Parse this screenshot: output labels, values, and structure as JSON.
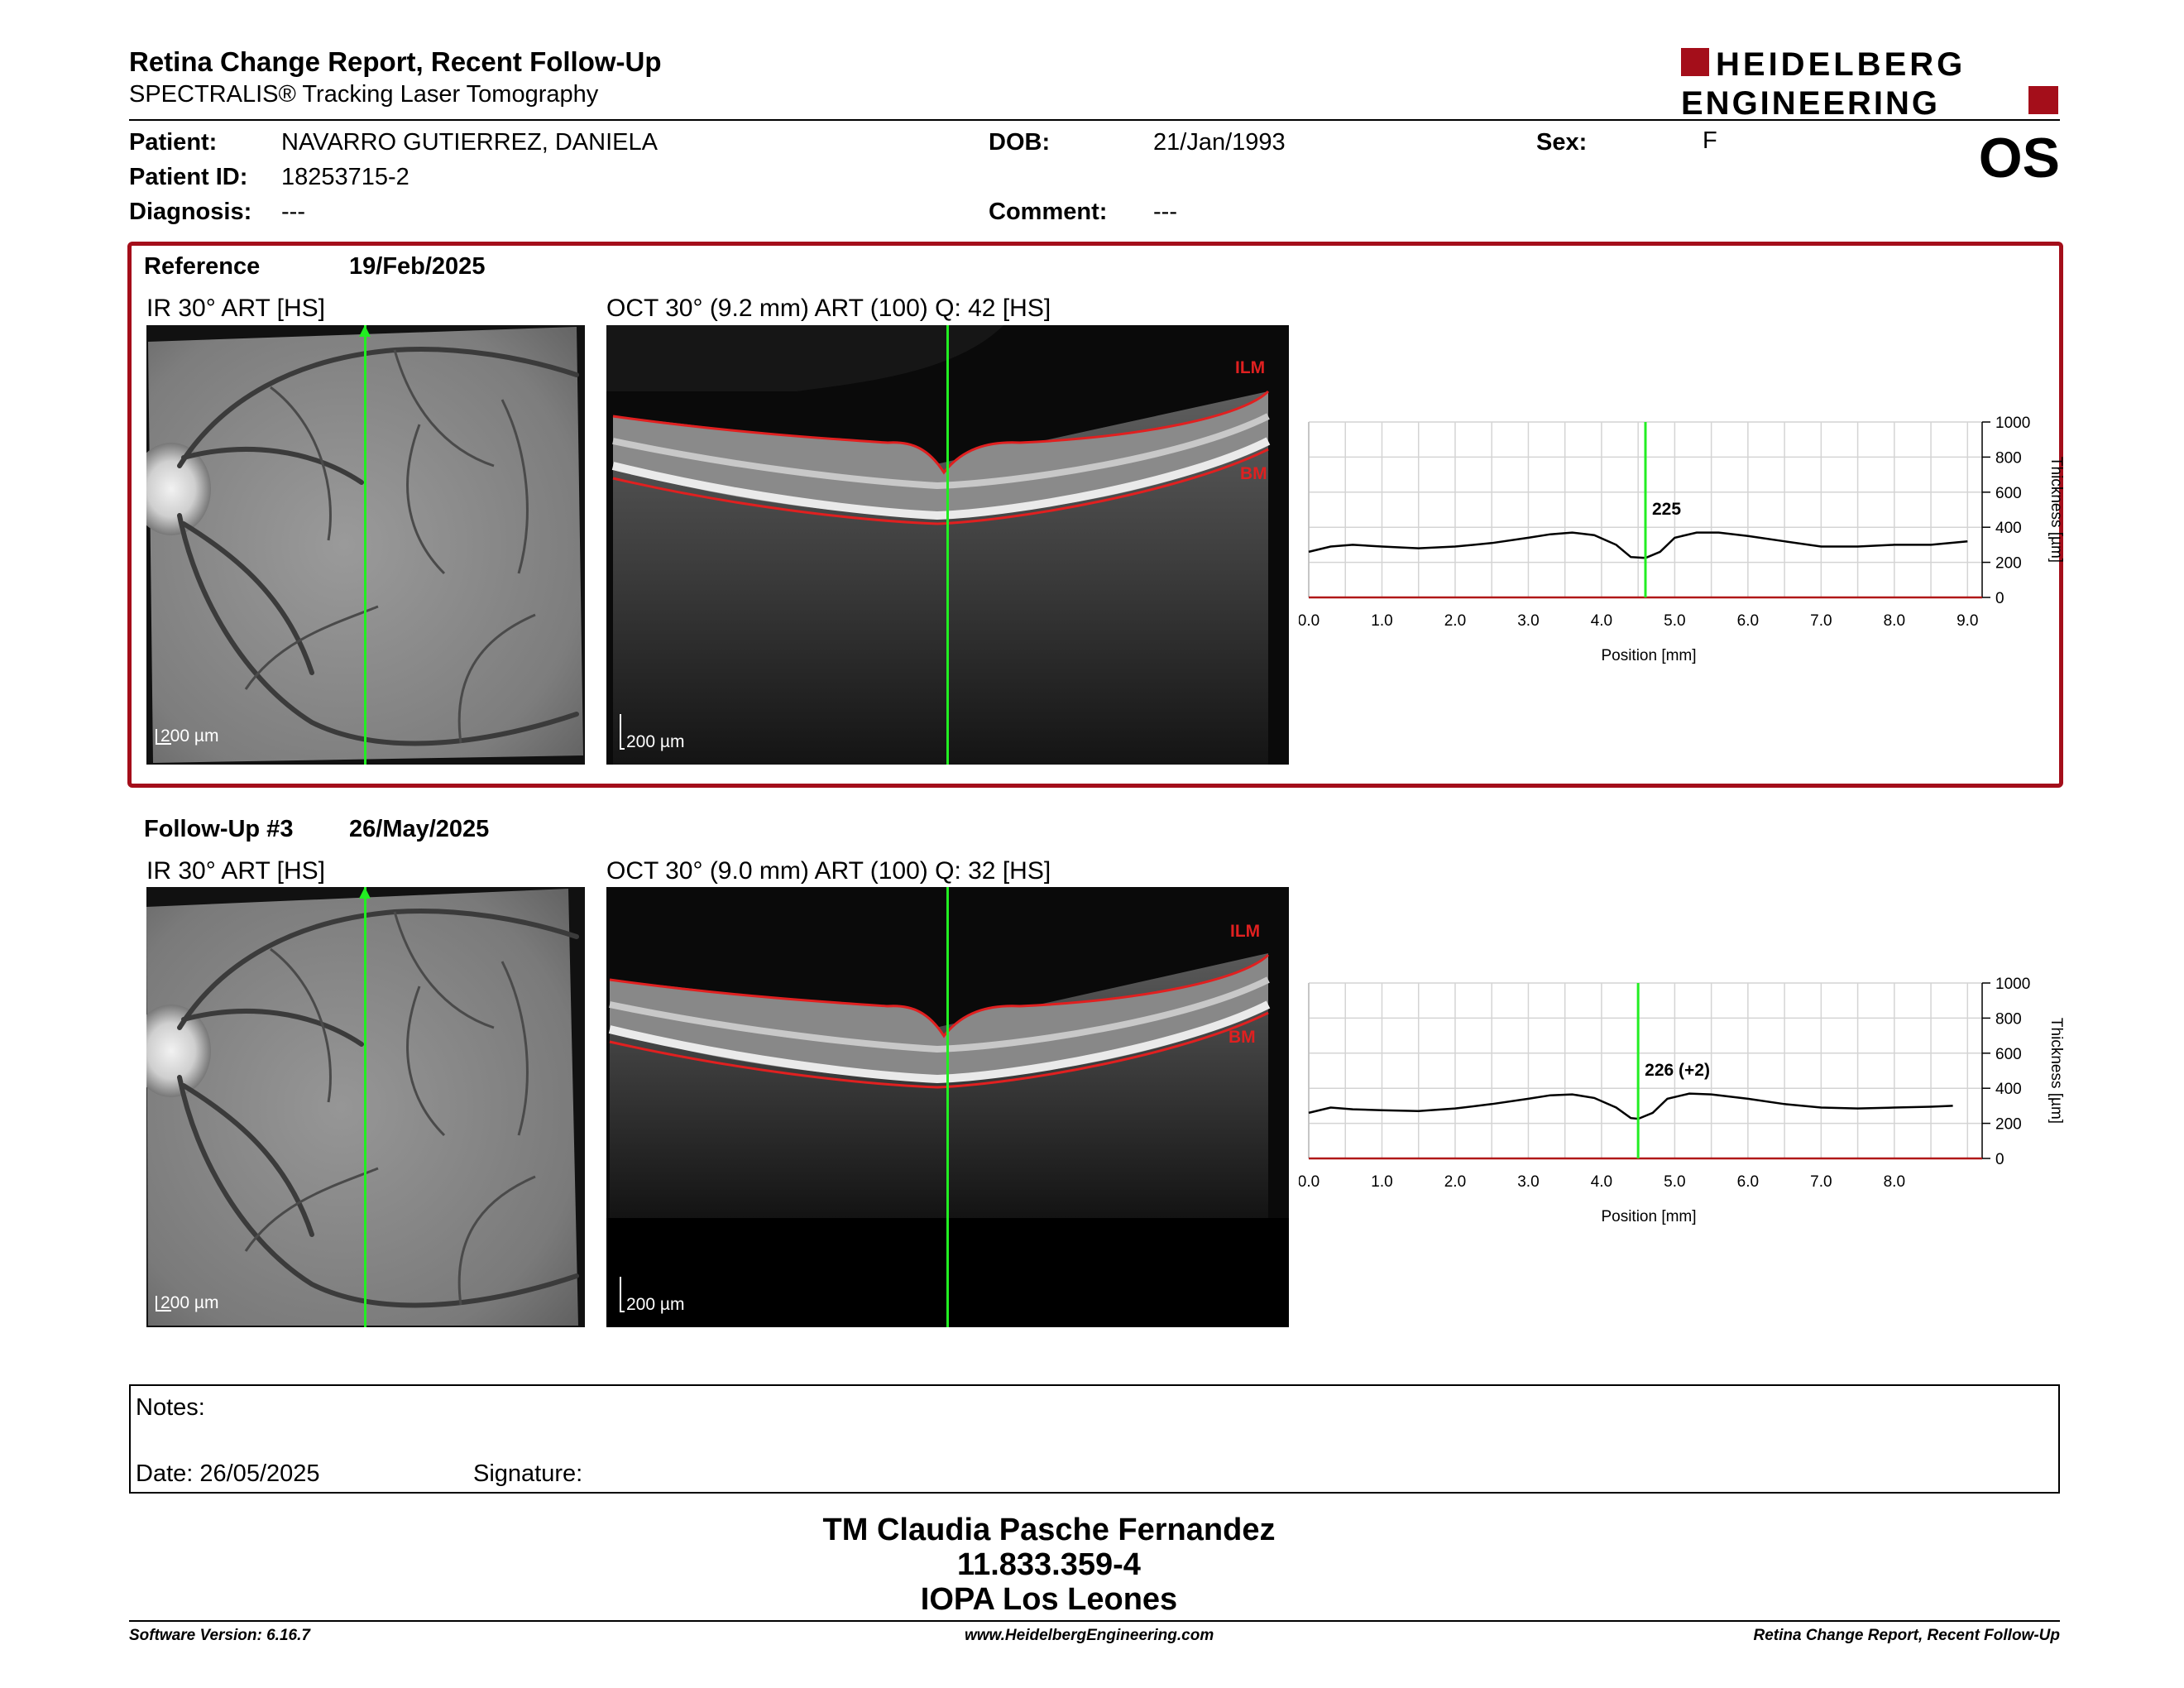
{
  "header": {
    "title": "Retina Change Report, Recent Follow-Up",
    "subtitle": "SPECTRALIS® Tracking Laser Tomography",
    "logo_line1": "HEIDELBERG",
    "logo_line2": "ENGINEERING",
    "eye": "OS"
  },
  "patient": {
    "patient_label": "Patient:",
    "patient_name": "NAVARRO GUTIERREZ, DANIELA",
    "id_label": "Patient ID:",
    "id_value": "18253715-2",
    "diagnosis_label": "Diagnosis:",
    "diagnosis_value": "---",
    "dob_label": "DOB:",
    "dob_value": "21/Jan/1993",
    "comment_label": "Comment:",
    "comment_value": "---",
    "sex_label": "Sex:",
    "sex_value": "F"
  },
  "reference": {
    "label": "Reference",
    "date": "19/Feb/2025",
    "ir_label": "IR 30° ART [HS]",
    "oct_label": "OCT 30° (9.2 mm) ART (100) Q: 42 [HS]",
    "scale": "200 µm",
    "ilm": "ILM",
    "bm": "BM"
  },
  "followup": {
    "label": "Follow-Up #3",
    "date": "26/May/2025",
    "ir_label": "IR 30° ART [HS]",
    "oct_label": "OCT 30° (9.0 mm) ART (100) Q: 32 [HS]",
    "scale": "200 µm",
    "ilm": "ILM",
    "bm": "BM"
  },
  "chart_data": [
    {
      "type": "line",
      "title": "",
      "xlabel": "Position [mm]",
      "ylabel": "Thickness [µm]",
      "xlim": [
        0,
        9.2
      ],
      "ylim": [
        0,
        1000
      ],
      "x_ticks": [
        "0.0",
        "1.0",
        "2.0",
        "3.0",
        "4.0",
        "5.0",
        "6.0",
        "7.0",
        "8.0",
        "9.0"
      ],
      "y_ticks": [
        "0",
        "200",
        "400",
        "600",
        "800",
        "1000"
      ],
      "cursor_x": 4.6,
      "cursor_label": "225",
      "series": [
        {
          "x": [
            0.0,
            0.3,
            0.6,
            1.0,
            1.5,
            2.0,
            2.5,
            3.0,
            3.3,
            3.6,
            3.9,
            4.2,
            4.4,
            4.6,
            4.8,
            5.0,
            5.3,
            5.6,
            6.0,
            6.5,
            7.0,
            7.5,
            8.0,
            8.5,
            9.0
          ],
          "values": [
            260,
            290,
            300,
            290,
            280,
            290,
            310,
            340,
            360,
            370,
            355,
            300,
            230,
            225,
            260,
            340,
            370,
            370,
            350,
            320,
            290,
            290,
            300,
            300,
            320
          ]
        }
      ]
    },
    {
      "type": "line",
      "title": "",
      "xlabel": "Position [mm]",
      "ylabel": "Thickness [µm]",
      "xlim": [
        0,
        9.2
      ],
      "ylim": [
        0,
        1000
      ],
      "x_ticks": [
        "0.0",
        "1.0",
        "2.0",
        "3.0",
        "4.0",
        "5.0",
        "6.0",
        "7.0",
        "8.0"
      ],
      "y_ticks": [
        "0",
        "200",
        "400",
        "600",
        "800",
        "1000"
      ],
      "cursor_x": 4.5,
      "cursor_label": "226 (+2)",
      "series": [
        {
          "x": [
            0.0,
            0.3,
            0.6,
            1.0,
            1.5,
            2.0,
            2.5,
            3.0,
            3.3,
            3.6,
            3.9,
            4.2,
            4.4,
            4.5,
            4.7,
            4.9,
            5.2,
            5.5,
            6.0,
            6.5,
            7.0,
            7.5,
            8.0,
            8.5,
            8.8
          ],
          "values": [
            260,
            290,
            280,
            275,
            270,
            285,
            310,
            340,
            360,
            365,
            345,
            290,
            230,
            226,
            260,
            340,
            370,
            365,
            340,
            310,
            290,
            285,
            290,
            295,
            300
          ]
        }
      ]
    }
  ],
  "notes": {
    "label": "Notes:",
    "date": "Date: 26/05/2025",
    "signature": "Signature:"
  },
  "signature_block": {
    "name": "TM Claudia Pasche Fernandez",
    "id": "11.833.359-4",
    "institution": "IOPA Los Leones"
  },
  "footer": {
    "software": "Software Version: 6.16.7",
    "website": "www.HeidelbergEngineering.com",
    "report": "Retina Change Report, Recent Follow-Up"
  },
  "colors": {
    "accent": "#a40e1a",
    "cursor": "#22ee22",
    "ilm": "#e02020"
  }
}
